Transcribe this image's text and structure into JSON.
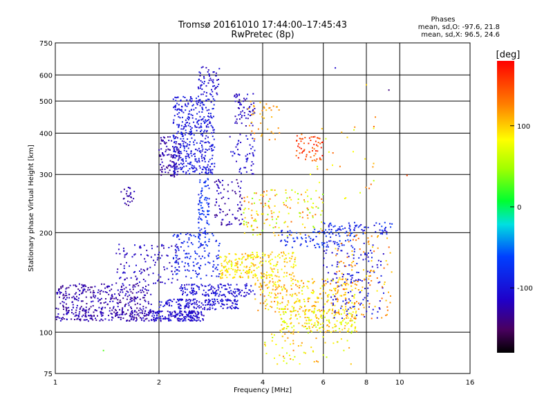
{
  "chart_data": {
    "type": "scatter",
    "title": "Tromsø 20161010 17:44:00–17:45:43",
    "subtitle": "RwPretec (8p)",
    "xlabel": "Frequency [MHz]",
    "ylabel": "Stationary phase Virtual Height [km]",
    "x_scale": "log",
    "y_scale": "log",
    "xlim": [
      1,
      16
    ],
    "ylim": [
      75,
      750
    ],
    "x_ticks": [
      1,
      2,
      4,
      6,
      8,
      10,
      16
    ],
    "x_tick_labels": [
      "1",
      "2",
      "4",
      "6",
      "8",
      "10",
      "16"
    ],
    "y_ticks": [
      75,
      100,
      200,
      300,
      400,
      500,
      600,
      750
    ],
    "y_tick_labels": [
      "75",
      "100",
      "200",
      "300",
      "400",
      "500",
      "600",
      "750"
    ],
    "grid": true,
    "phase_stats": {
      "heading": "Phases",
      "line_o": "mean, sd,O: -97.6, 21.8",
      "line_x": "mean, sd,X:  96.5, 24.6"
    },
    "colorbar": {
      "label": "[deg]",
      "range": [
        -180,
        180
      ],
      "ticks": [
        100,
        0,
        -100
      ],
      "tick_labels": [
        "100",
        "0",
        "-100"
      ]
    },
    "clusters": [
      {
        "x": [
          1.0,
          1.9
        ],
        "y": [
          108,
          118
        ],
        "n": 220,
        "phase": [
          -140,
          -110
        ]
      },
      {
        "x": [
          1.0,
          1.9
        ],
        "y": [
          118,
          140
        ],
        "n": 260,
        "phase": [
          -140,
          -110
        ]
      },
      {
        "x": [
          1.5,
          2.3
        ],
        "y": [
          140,
          185
        ],
        "n": 120,
        "phase": [
          -130,
          -100
        ]
      },
      {
        "x": [
          1.9,
          2.7
        ],
        "y": [
          108,
          116
        ],
        "n": 180,
        "phase": [
          -125,
          -95
        ]
      },
      {
        "x": [
          2.0,
          3.4
        ],
        "y": [
          117,
          126
        ],
        "n": 170,
        "phase": [
          -120,
          -90
        ]
      },
      {
        "x": [
          2.3,
          3.8
        ],
        "y": [
          128,
          140
        ],
        "n": 150,
        "phase": [
          -120,
          -90
        ]
      },
      {
        "x": [
          2.0,
          2.3
        ],
        "y": [
          295,
          390
        ],
        "n": 110,
        "phase": [
          -140,
          -115
        ]
      },
      {
        "x": [
          2.2,
          2.9
        ],
        "y": [
          300,
          520
        ],
        "n": 420,
        "phase": [
          -110,
          -85
        ]
      },
      {
        "x": [
          2.6,
          3.0
        ],
        "y": [
          520,
          640
        ],
        "n": 60,
        "phase": [
          -125,
          -95
        ]
      },
      {
        "x": [
          2.6,
          2.8
        ],
        "y": [
          180,
          300
        ],
        "n": 90,
        "phase": [
          -95,
          -55
        ]
      },
      {
        "x": [
          2.2,
          3.0
        ],
        "y": [
          145,
          200
        ],
        "n": 140,
        "phase": [
          -100,
          -70
        ]
      },
      {
        "x": [
          1.55,
          1.7
        ],
        "y": [
          240,
          275
        ],
        "n": 25,
        "phase": [
          -140,
          -115
        ]
      },
      {
        "x": [
          2.9,
          3.5
        ],
        "y": [
          210,
          290
        ],
        "n": 80,
        "phase": [
          -140,
          -110
        ]
      },
      {
        "x": [
          3.2,
          3.8
        ],
        "y": [
          300,
          400
        ],
        "n": 50,
        "phase": [
          -120,
          -95
        ]
      },
      {
        "x": [
          3.3,
          3.8
        ],
        "y": [
          420,
          530
        ],
        "n": 60,
        "phase": [
          -130,
          -100
        ]
      },
      {
        "x": [
          3.0,
          5.0
        ],
        "y": [
          145,
          175
        ],
        "n": 240,
        "phase": [
          70,
          120
        ]
      },
      {
        "x": [
          3.8,
          7.5
        ],
        "y": [
          115,
          145
        ],
        "n": 260,
        "phase": [
          70,
          130
        ]
      },
      {
        "x": [
          4.5,
          7.5
        ],
        "y": [
          100,
          118
        ],
        "n": 200,
        "phase": [
          60,
          120
        ]
      },
      {
        "x": [
          3.5,
          6.0
        ],
        "y": [
          195,
          270
        ],
        "n": 160,
        "phase": [
          40,
          140
        ]
      },
      {
        "x": [
          5.0,
          6.0
        ],
        "y": [
          330,
          400
        ],
        "n": 60,
        "phase": [
          130,
          175
        ]
      },
      {
        "x": [
          4.5,
          7.5
        ],
        "y": [
          180,
          205
        ],
        "n": 90,
        "phase": [
          -100,
          -60
        ]
      },
      {
        "x": [
          6.0,
          9.5
        ],
        "y": [
          198,
          215
        ],
        "n": 70,
        "phase": [
          -110,
          -60
        ]
      },
      {
        "x": [
          6.0,
          9.0
        ],
        "y": [
          110,
          190
        ],
        "n": 150,
        "phase": [
          -120,
          -80
        ]
      },
      {
        "x": [
          6.5,
          9.5
        ],
        "y": [
          110,
          200
        ],
        "n": 120,
        "phase": [
          90,
          140
        ]
      },
      {
        "x": [
          3.5,
          4.5
        ],
        "y": [
          380,
          500
        ],
        "n": 40,
        "phase": [
          100,
          130
        ]
      },
      {
        "x": [
          4.0,
          7.5
        ],
        "y": [
          80,
          100
        ],
        "n": 60,
        "phase": [
          60,
          130
        ]
      },
      {
        "x": [
          5.5,
          8.5
        ],
        "y": [
          250,
          450
        ],
        "n": 30,
        "phase": [
          60,
          140
        ]
      }
    ],
    "isolated_points": [
      {
        "x": 10.5,
        "y": 298,
        "phase": 150
      },
      {
        "x": 9.3,
        "y": 540,
        "phase": -140
      },
      {
        "x": 8.0,
        "y": 560,
        "phase": 100
      },
      {
        "x": 6.5,
        "y": 630,
        "phase": -110
      },
      {
        "x": 1.38,
        "y": 88,
        "phase": 30
      }
    ]
  }
}
